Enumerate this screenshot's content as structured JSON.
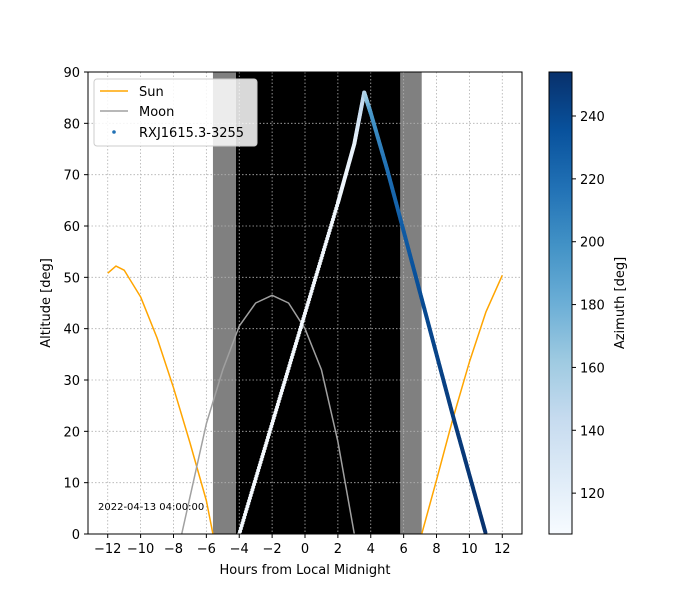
{
  "chart_data": {
    "type": "line",
    "xlabel": "Hours from Local Midnight",
    "ylabel": "Altitude [deg]",
    "xlim": [
      -13.2,
      13.2
    ],
    "ylim": [
      0,
      90
    ],
    "xticks": [
      -12,
      -10,
      -8,
      -6,
      -4,
      -2,
      0,
      2,
      4,
      6,
      8,
      10,
      12
    ],
    "xtick_labels": [
      "−12",
      "−10",
      "−8",
      "−6",
      "−4",
      "−2",
      "0",
      "2",
      "4",
      "6",
      "8",
      "10",
      "12"
    ],
    "yticks": [
      0,
      10,
      20,
      30,
      40,
      50,
      60,
      70,
      80,
      90
    ],
    "grid": true,
    "legend_position": "top-left",
    "annotation": "2022-04-13 04:00:00",
    "twilight_bands": [
      {
        "x0": -5.6,
        "x1": -4.2,
        "color": "#808080"
      },
      {
        "x0": -4.2,
        "x1": 5.8,
        "color": "#000000"
      },
      {
        "x0": 5.8,
        "x1": 7.1,
        "color": "#808080"
      }
    ],
    "series": [
      {
        "name": "Sun",
        "type": "line",
        "color": "#ffa500",
        "x": [
          -12,
          -11.5,
          -11,
          -10,
          -9,
          -8,
          -7,
          -6,
          -5.6,
          7.1,
          8,
          9,
          10,
          11,
          12
        ],
        "y": [
          50.8,
          52.2,
          51.4,
          46.2,
          38.2,
          28.5,
          17.8,
          6.5,
          0,
          0,
          10.5,
          22.5,
          33.5,
          43.2,
          50.4
        ]
      },
      {
        "name": "Moon",
        "type": "line",
        "color": "#a0a0a0",
        "x": [
          -7.5,
          -6,
          -5,
          -4,
          -3,
          -2,
          -1,
          0,
          1,
          2,
          3
        ],
        "y": [
          0,
          21.5,
          32,
          40.5,
          45,
          46.5,
          45,
          40,
          32,
          18,
          0
        ]
      },
      {
        "name": "RXJ1615.3-3255",
        "type": "scatter",
        "cmap": "Blues",
        "x": [
          -4,
          -2,
          0,
          2,
          3,
          3.6,
          4,
          5,
          6,
          7,
          8,
          9,
          10,
          11
        ],
        "y": [
          0,
          21.5,
          43,
          64.5,
          76,
          86,
          82,
          71,
          59,
          47,
          35,
          23,
          11.5,
          0
        ],
        "azimuth": [
          109,
          109,
          110,
          112,
          118,
          150,
          195,
          218,
          230,
          238,
          243,
          247,
          250,
          253
        ]
      }
    ],
    "colorbar": {
      "label": "Azimuth [deg]",
      "vmin": 107,
      "vmax": 254,
      "ticks": [
        120,
        140,
        160,
        180,
        200,
        220,
        240
      ]
    }
  }
}
